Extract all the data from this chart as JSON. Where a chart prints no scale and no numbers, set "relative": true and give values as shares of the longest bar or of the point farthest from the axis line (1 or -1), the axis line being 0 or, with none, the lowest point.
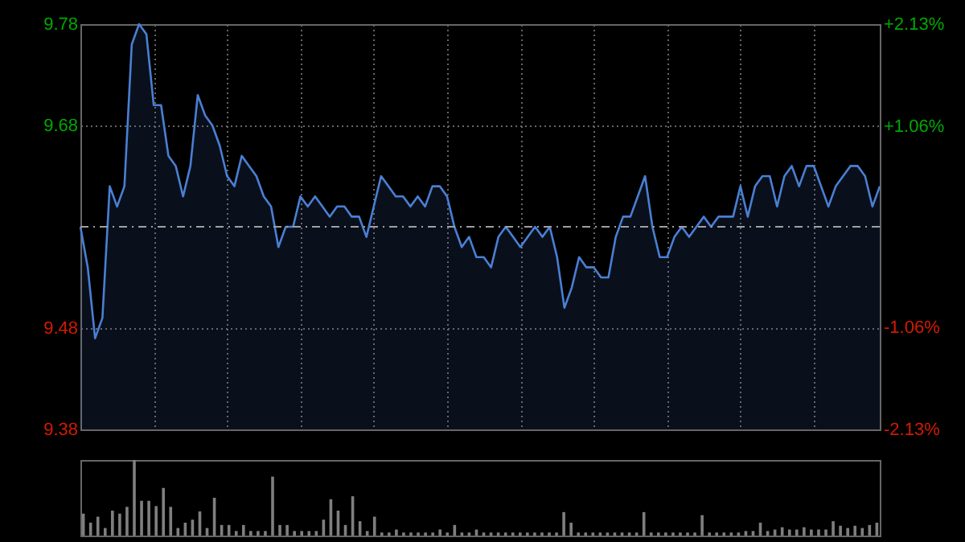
{
  "chart_data": [
    {
      "type": "area",
      "categories": [
        null,
        null,
        null,
        null,
        null,
        null,
        null,
        null,
        null,
        null,
        null,
        null,
        null,
        null,
        null,
        null,
        null,
        null,
        null,
        null,
        null,
        null,
        null,
        null,
        null,
        null,
        null,
        null,
        null,
        null,
        null,
        null,
        null,
        null,
        null,
        null,
        null,
        null,
        null,
        null,
        null,
        null,
        null,
        null,
        null,
        null,
        null,
        null,
        null,
        null,
        null,
        null,
        null,
        null,
        null,
        null,
        null,
        null,
        null,
        null,
        null,
        null,
        null,
        null,
        null,
        null,
        null,
        null,
        null,
        null,
        null,
        null,
        null,
        null,
        null,
        null,
        null,
        null,
        null,
        null,
        null,
        null,
        null,
        null,
        null,
        null,
        null,
        null,
        null,
        null,
        null,
        null,
        null,
        null,
        null,
        null,
        null,
        null,
        null,
        null,
        null,
        null,
        null,
        null,
        null,
        null,
        null,
        null,
        null,
        null
      ],
      "series": [
        {
          "color": "#4a7fd4",
          "values": [
            9.58,
            9.54,
            9.47,
            9.49,
            9.62,
            9.6,
            9.62,
            9.76,
            9.78,
            9.77,
            9.7,
            9.7,
            9.65,
            9.64,
            9.61,
            9.64,
            9.71,
            9.69,
            9.68,
            9.66,
            9.63,
            9.62,
            9.65,
            9.64,
            9.63,
            9.61,
            9.6,
            9.56,
            9.58,
            9.58,
            9.61,
            9.6,
            9.61,
            9.6,
            9.59,
            9.6,
            9.6,
            9.59,
            9.59,
            9.57,
            9.6,
            9.63,
            9.62,
            9.61,
            9.61,
            9.6,
            9.61,
            9.6,
            9.62,
            9.62,
            9.61,
            9.58,
            9.56,
            9.57,
            9.55,
            9.55,
            9.54,
            9.57,
            9.58,
            9.57,
            9.56,
            9.57,
            9.58,
            9.57,
            9.58,
            9.55,
            9.5,
            9.52,
            9.55,
            9.54,
            9.54,
            9.53,
            9.53,
            9.57,
            9.59,
            9.59,
            9.61,
            9.63,
            9.58,
            9.55,
            9.55,
            9.57,
            9.58,
            9.57,
            9.58,
            9.59,
            9.58,
            9.59,
            9.59,
            9.59,
            9.62,
            9.59,
            9.62,
            9.63,
            9.63,
            9.6,
            9.63,
            9.64,
            9.62,
            9.64,
            9.64,
            9.62,
            9.6,
            9.62,
            9.63,
            9.64,
            9.64,
            9.63,
            9.6,
            9.62
          ]
        }
      ],
      "ylim": [
        9.38,
        9.78
      ],
      "yticks": [
        9.38,
        9.48,
        9.68,
        9.78
      ],
      "y2lim": [
        -2.13,
        2.13
      ],
      "y2ticks": [
        {
          "value": -2.13,
          "label": "-2.13%"
        },
        {
          "value": -1.06,
          "label": "-1.06%"
        },
        {
          "value": 1.06,
          "label": "+1.06%"
        },
        {
          "value": 2.13,
          "label": "+2.13%"
        }
      ],
      "ref_lines": [
        {
          "axis": "y",
          "value": 9.58,
          "line_style": "dashed"
        }
      ],
      "grid": true
    },
    {
      "type": "bar",
      "relative": true,
      "categories": [
        null,
        null,
        null,
        null,
        null,
        null,
        null,
        null,
        null,
        null,
        null,
        null,
        null,
        null,
        null,
        null,
        null,
        null,
        null,
        null,
        null,
        null,
        null,
        null,
        null,
        null,
        null,
        null,
        null,
        null,
        null,
        null,
        null,
        null,
        null,
        null,
        null,
        null,
        null,
        null,
        null,
        null,
        null,
        null,
        null,
        null,
        null,
        null,
        null,
        null,
        null,
        null,
        null,
        null,
        null,
        null,
        null,
        null,
        null,
        null,
        null,
        null,
        null,
        null,
        null,
        null,
        null,
        null,
        null,
        null,
        null,
        null,
        null,
        null,
        null,
        null,
        null,
        null,
        null,
        null,
        null,
        null,
        null,
        null,
        null,
        null,
        null,
        null,
        null,
        null,
        null,
        null,
        null,
        null,
        null,
        null,
        null,
        null,
        null,
        null,
        null,
        null,
        null,
        null,
        null,
        null,
        null,
        null,
        null,
        null
      ],
      "series": [
        {
          "color": "#7f7f7f",
          "values": [
            0.29,
            0.17,
            0.25,
            0.1,
            0.33,
            0.29,
            0.38,
            1,
            0.46,
            0.46,
            0.39,
            0.63,
            0.38,
            0.1,
            0.17,
            0.21,
            0.32,
            0.1,
            0.5,
            0.14,
            0.14,
            0.06,
            0.14,
            0.06,
            0.06,
            0.06,
            0.78,
            0.14,
            0.14,
            0.06,
            0.06,
            0.06,
            0.06,
            0.21,
            0.48,
            0.33,
            0.14,
            0.52,
            0.19,
            0.06,
            0.25,
            0.04,
            0.04,
            0.08,
            0.04,
            0.04,
            0.04,
            0.04,
            0.04,
            0.08,
            0.04,
            0.14,
            0.04,
            0.04,
            0.08,
            0.04,
            0.04,
            0.04,
            0.04,
            0.04,
            0.04,
            0.04,
            0.04,
            0.04,
            0.04,
            0.04,
            0.31,
            0.17,
            0.04,
            0.04,
            0.04,
            0.04,
            0.04,
            0.04,
            0.04,
            0.04,
            0.04,
            0.31,
            0.04,
            0.04,
            0.04,
            0.04,
            0.04,
            0.04,
            0.04,
            0.27,
            0.04,
            0.04,
            0.04,
            0.04,
            0.04,
            0.06,
            0.06,
            0.17,
            0.06,
            0.08,
            0.11,
            0.08,
            0.08,
            0.11,
            0.08,
            0.08,
            0.08,
            0.19,
            0.13,
            0.1,
            0.13,
            0.1,
            0.14,
            0.17
          ]
        }
      ]
    }
  ]
}
